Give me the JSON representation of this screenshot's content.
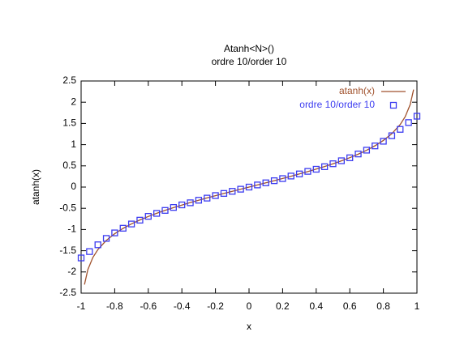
{
  "chart_data": {
    "type": "line",
    "title": "Atanh<N>()",
    "subtitle": "ordre 10/order 10",
    "xlabel": "x",
    "ylabel": "atanh(x)",
    "xlim": [
      -1,
      1
    ],
    "ylim": [
      -2.5,
      2.5
    ],
    "xticks": [
      -1,
      -0.8,
      -0.6,
      -0.4,
      -0.2,
      0,
      0.2,
      0.4,
      0.6,
      0.8,
      1
    ],
    "yticks": [
      -2.5,
      -2,
      -1.5,
      -1,
      -0.5,
      0,
      0.5,
      1,
      1.5,
      2,
      2.5
    ],
    "grid": false,
    "legend": "top right",
    "series": [
      {
        "name": "atanh(x)",
        "type": "line",
        "color": "#a0522d",
        "x": [
          -0.98,
          -0.96,
          -0.93,
          -0.9,
          -0.85,
          -0.8,
          -0.75,
          -0.7,
          -0.65,
          -0.6,
          -0.55,
          -0.5,
          -0.45,
          -0.4,
          -0.35,
          -0.3,
          -0.25,
          -0.2,
          -0.15,
          -0.1,
          -0.05,
          0,
          0.05,
          0.1,
          0.15,
          0.2,
          0.25,
          0.3,
          0.35,
          0.4,
          0.45,
          0.5,
          0.55,
          0.6,
          0.65,
          0.7,
          0.75,
          0.8,
          0.85,
          0.9,
          0.93,
          0.96,
          0.98
        ],
        "values": [
          -2.298,
          -1.946,
          -1.658,
          -1.472,
          -1.256,
          -1.099,
          -0.973,
          -0.867,
          -0.775,
          -0.693,
          -0.618,
          -0.549,
          -0.485,
          -0.424,
          -0.365,
          -0.31,
          -0.255,
          -0.203,
          -0.151,
          -0.1,
          -0.05,
          0,
          0.05,
          0.1,
          0.151,
          0.203,
          0.255,
          0.31,
          0.365,
          0.424,
          0.485,
          0.549,
          0.618,
          0.693,
          0.775,
          0.867,
          0.973,
          1.099,
          1.256,
          1.472,
          1.658,
          1.946,
          2.298
        ]
      },
      {
        "name": "ordre 10/order 10",
        "type": "scatter",
        "marker": "square",
        "color": "#3c3cf0",
        "x": [
          -1,
          -0.95,
          -0.9,
          -0.85,
          -0.8,
          -0.75,
          -0.7,
          -0.65,
          -0.6,
          -0.55,
          -0.5,
          -0.45,
          -0.4,
          -0.35,
          -0.3,
          -0.25,
          -0.2,
          -0.15,
          -0.1,
          -0.05,
          0,
          0.05,
          0.1,
          0.15,
          0.2,
          0.25,
          0.3,
          0.35,
          0.4,
          0.45,
          0.5,
          0.55,
          0.6,
          0.65,
          0.7,
          0.75,
          0.8,
          0.85,
          0.9,
          0.95,
          1
        ],
        "values": [
          -1.67,
          -1.52,
          -1.36,
          -1.21,
          -1.08,
          -0.97,
          -0.87,
          -0.78,
          -0.69,
          -0.62,
          -0.55,
          -0.48,
          -0.42,
          -0.37,
          -0.31,
          -0.26,
          -0.2,
          -0.15,
          -0.1,
          -0.05,
          0,
          0.05,
          0.1,
          0.15,
          0.2,
          0.26,
          0.31,
          0.37,
          0.42,
          0.48,
          0.55,
          0.62,
          0.69,
          0.78,
          0.87,
          0.97,
          1.08,
          1.21,
          1.36,
          1.52,
          1.67
        ]
      }
    ]
  }
}
